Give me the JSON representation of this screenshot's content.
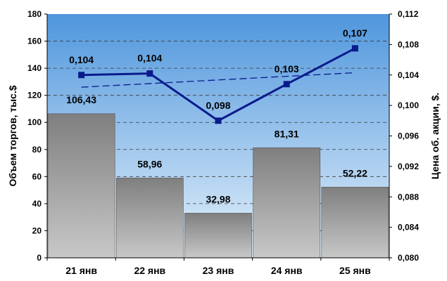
{
  "chart_data": {
    "type": "bar",
    "categories": [
      "21 янв",
      "22 янв",
      "23 янв",
      "24 янв",
      "25 янв"
    ],
    "series": [
      {
        "type": "bar",
        "values": [
          106.43,
          58.96,
          32.98,
          81.31,
          52.22
        ],
        "labels": [
          "106,43",
          "58,96",
          "32,98",
          "81,31",
          "52,22"
        ],
        "axis": "left"
      },
      {
        "type": "line",
        "values": [
          0.104,
          0.1042,
          0.098,
          0.1028,
          0.1075
        ],
        "labels": [
          "0,104",
          "0,104",
          "0,098",
          "0,103",
          "0,107"
        ],
        "axis": "right"
      }
    ],
    "trendline": {
      "style": "dashed",
      "axis": "right",
      "start": 0.1024,
      "end": 0.1043
    },
    "ylabel": "Объем торгов, тыс.$",
    "y2label": "Цена об. акции,  $.",
    "ylim": [
      0,
      180
    ],
    "y2lim": [
      0.08,
      0.112
    ],
    "yticks": [
      "0",
      "20",
      "40",
      "60",
      "80",
      "100",
      "120",
      "140",
      "160",
      "180"
    ],
    "y2ticks": [
      "0,080",
      "0,084",
      "0,088",
      "0,092",
      "0,096",
      "0,100",
      "0,104",
      "0,108",
      "0,112"
    ],
    "grid": "horizontal dashed",
    "colors": {
      "plot_bg_top": "#4f96dd",
      "plot_bg_bottom": "#e6f2fb",
      "bar_top": "#7f7f7f",
      "bar_bottom": "#c8c8c8",
      "line": "#0a1a8c"
    }
  }
}
